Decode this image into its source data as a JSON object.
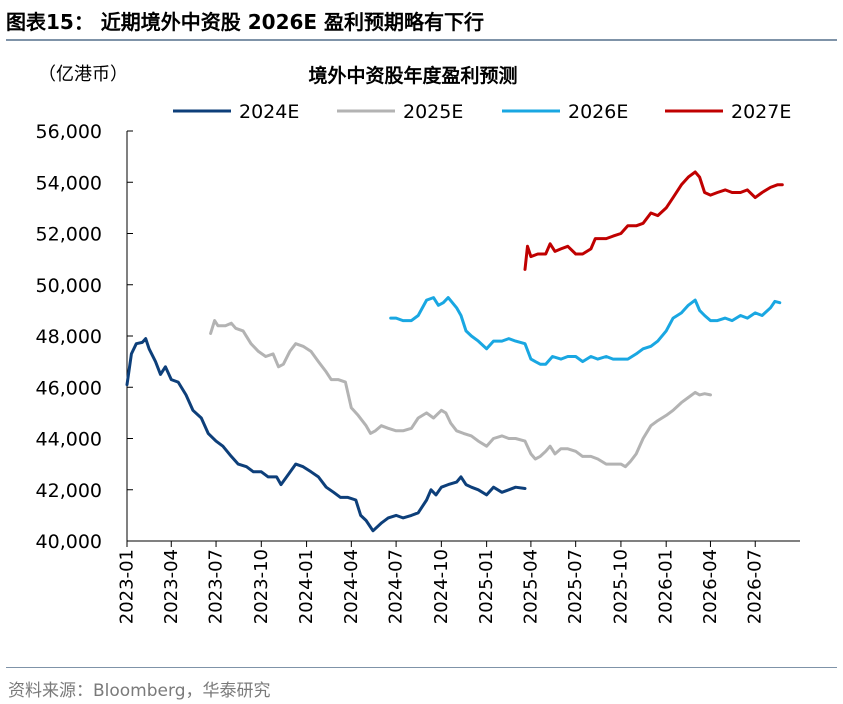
{
  "figure": {
    "title": "图表15：  近期境外中资股 2026E 盈利预期略有下行",
    "source": "资料来源：Bloomberg，华泰研究"
  },
  "chart_data": {
    "type": "line",
    "title": "境外中资股年度盈利预测",
    "unit_label": "（亿港币）",
    "ylim": [
      40000,
      56000
    ],
    "y_ticks": [
      40000,
      42000,
      44000,
      46000,
      48000,
      50000,
      52000,
      54000,
      56000
    ],
    "y_tick_labels": [
      "40,000",
      "42,000",
      "44,000",
      "46,000",
      "48,000",
      "50,000",
      "52,000",
      "54,000",
      "56,000"
    ],
    "x_range": [
      "2023-01",
      "2026-09"
    ],
    "x_ticks": [
      "2023-01",
      "2023-04",
      "2023-07",
      "2023-10",
      "2024-01",
      "2024-04",
      "2024-07",
      "2024-10",
      "2025-01",
      "2025-04",
      "2025-07",
      "2025-10",
      "2026-01",
      "2026-04",
      "2026-07"
    ],
    "grid": false,
    "legend_position": "top",
    "series": [
      {
        "name": "2024E",
        "color": "#0d3f7a",
        "points": [
          [
            "2023-01-01",
            46100
          ],
          [
            "2023-01-10",
            47300
          ],
          [
            "2023-01-20",
            47700
          ],
          [
            "2023-02-01",
            47750
          ],
          [
            "2023-02-08",
            47900
          ],
          [
            "2023-02-15",
            47500
          ],
          [
            "2023-02-28",
            47000
          ],
          [
            "2023-03-10",
            46500
          ],
          [
            "2023-03-20",
            46800
          ],
          [
            "2023-04-01",
            46300
          ],
          [
            "2023-04-15",
            46200
          ],
          [
            "2023-05-01",
            45700
          ],
          [
            "2023-05-15",
            45100
          ],
          [
            "2023-06-01",
            44800
          ],
          [
            "2023-06-15",
            44200
          ],
          [
            "2023-07-01",
            43900
          ],
          [
            "2023-07-15",
            43700
          ],
          [
            "2023-08-01",
            43300
          ],
          [
            "2023-08-15",
            43000
          ],
          [
            "2023-09-01",
            42900
          ],
          [
            "2023-09-15",
            42700
          ],
          [
            "2023-10-01",
            42700
          ],
          [
            "2023-10-15",
            42500
          ],
          [
            "2023-11-01",
            42500
          ],
          [
            "2023-11-10",
            42200
          ],
          [
            "2023-11-25",
            42600
          ],
          [
            "2023-12-10",
            43000
          ],
          [
            "2023-12-25",
            42900
          ],
          [
            "2024-01-10",
            42700
          ],
          [
            "2024-01-25",
            42500
          ],
          [
            "2024-02-10",
            42100
          ],
          [
            "2024-02-25",
            41900
          ],
          [
            "2024-03-10",
            41700
          ],
          [
            "2024-03-25",
            41700
          ],
          [
            "2024-04-10",
            41600
          ],
          [
            "2024-04-20",
            41000
          ],
          [
            "2024-05-01",
            40800
          ],
          [
            "2024-05-15",
            40400
          ],
          [
            "2024-06-01",
            40700
          ],
          [
            "2024-06-15",
            40900
          ],
          [
            "2024-07-01",
            41000
          ],
          [
            "2024-07-15",
            40900
          ],
          [
            "2024-08-01",
            41000
          ],
          [
            "2024-08-15",
            41100
          ],
          [
            "2024-09-01",
            41600
          ],
          [
            "2024-09-10",
            42000
          ],
          [
            "2024-09-20",
            41800
          ],
          [
            "2024-10-01",
            42100
          ],
          [
            "2024-10-15",
            42200
          ],
          [
            "2024-11-01",
            42300
          ],
          [
            "2024-11-10",
            42500
          ],
          [
            "2024-11-20",
            42200
          ],
          [
            "2024-12-01",
            42100
          ],
          [
            "2024-12-15",
            42000
          ],
          [
            "2025-01-01",
            41800
          ],
          [
            "2025-01-15",
            42100
          ],
          [
            "2025-02-01",
            41900
          ],
          [
            "2025-02-15",
            42000
          ],
          [
            "2025-03-01",
            42100
          ],
          [
            "2025-03-20",
            42050
          ]
        ]
      },
      {
        "name": "2025E",
        "color": "#b3b3b3",
        "points": [
          [
            "2023-06-20",
            48100
          ],
          [
            "2023-06-28",
            48600
          ],
          [
            "2023-07-05",
            48400
          ],
          [
            "2023-07-20",
            48400
          ],
          [
            "2023-08-01",
            48500
          ],
          [
            "2023-08-10",
            48300
          ],
          [
            "2023-08-25",
            48200
          ],
          [
            "2023-09-10",
            47700
          ],
          [
            "2023-09-25",
            47400
          ],
          [
            "2023-10-10",
            47200
          ],
          [
            "2023-10-25",
            47300
          ],
          [
            "2023-11-05",
            46800
          ],
          [
            "2023-11-15",
            46900
          ],
          [
            "2023-11-28",
            47400
          ],
          [
            "2023-12-10",
            47700
          ],
          [
            "2023-12-25",
            47600
          ],
          [
            "2024-01-10",
            47400
          ],
          [
            "2024-01-25",
            47000
          ],
          [
            "2024-02-10",
            46600
          ],
          [
            "2024-02-20",
            46300
          ],
          [
            "2024-03-05",
            46300
          ],
          [
            "2024-03-20",
            46200
          ],
          [
            "2024-04-01",
            45200
          ],
          [
            "2024-04-15",
            44900
          ],
          [
            "2024-05-01",
            44500
          ],
          [
            "2024-05-10",
            44200
          ],
          [
            "2024-05-20",
            44300
          ],
          [
            "2024-06-01",
            44500
          ],
          [
            "2024-06-15",
            44400
          ],
          [
            "2024-07-01",
            44300
          ],
          [
            "2024-07-15",
            44300
          ],
          [
            "2024-08-01",
            44400
          ],
          [
            "2024-08-15",
            44800
          ],
          [
            "2024-09-01",
            45000
          ],
          [
            "2024-09-15",
            44800
          ],
          [
            "2024-10-01",
            45100
          ],
          [
            "2024-10-10",
            45000
          ],
          [
            "2024-10-20",
            44600
          ],
          [
            "2024-11-01",
            44300
          ],
          [
            "2024-11-15",
            44200
          ],
          [
            "2024-12-01",
            44100
          ],
          [
            "2024-12-15",
            43900
          ],
          [
            "2025-01-01",
            43700
          ],
          [
            "2025-01-15",
            44000
          ],
          [
            "2025-02-01",
            44100
          ],
          [
            "2025-02-15",
            44000
          ],
          [
            "2025-03-01",
            44000
          ],
          [
            "2025-03-20",
            43900
          ],
          [
            "2025-04-01",
            43400
          ],
          [
            "2025-04-10",
            43200
          ],
          [
            "2025-04-20",
            43300
          ],
          [
            "2025-05-01",
            43500
          ],
          [
            "2025-05-10",
            43700
          ],
          [
            "2025-05-20",
            43400
          ],
          [
            "2025-06-01",
            43600
          ],
          [
            "2025-06-15",
            43600
          ],
          [
            "2025-07-01",
            43500
          ],
          [
            "2025-07-15",
            43300
          ],
          [
            "2025-08-01",
            43300
          ],
          [
            "2025-08-15",
            43200
          ],
          [
            "2025-09-01",
            43000
          ],
          [
            "2025-09-15",
            43000
          ],
          [
            "2025-10-01",
            43000
          ],
          [
            "2025-10-10",
            42900
          ],
          [
            "2025-10-20",
            43100
          ],
          [
            "2025-11-01",
            43400
          ],
          [
            "2025-11-15",
            44000
          ],
          [
            "2025-12-01",
            44500
          ],
          [
            "2025-12-15",
            44700
          ],
          [
            "2026-01-01",
            44900
          ],
          [
            "2026-01-15",
            45100
          ],
          [
            "2026-02-01",
            45400
          ],
          [
            "2026-02-15",
            45600
          ],
          [
            "2026-03-01",
            45800
          ],
          [
            "2026-03-10",
            45700
          ],
          [
            "2026-03-20",
            45750
          ],
          [
            "2026-04-01",
            45700
          ]
        ]
      },
      {
        "name": "2026E",
        "color": "#19a7e2",
        "points": [
          [
            "2024-06-20",
            48700
          ],
          [
            "2024-07-01",
            48700
          ],
          [
            "2024-07-15",
            48600
          ],
          [
            "2024-08-01",
            48600
          ],
          [
            "2024-08-15",
            48800
          ],
          [
            "2024-09-01",
            49400
          ],
          [
            "2024-09-15",
            49500
          ],
          [
            "2024-09-25",
            49200
          ],
          [
            "2024-10-05",
            49300
          ],
          [
            "2024-10-15",
            49500
          ],
          [
            "2024-11-01",
            49100
          ],
          [
            "2024-11-10",
            48800
          ],
          [
            "2024-11-20",
            48200
          ],
          [
            "2024-12-01",
            48000
          ],
          [
            "2024-12-15",
            47800
          ],
          [
            "2025-01-01",
            47500
          ],
          [
            "2025-01-15",
            47800
          ],
          [
            "2025-02-01",
            47800
          ],
          [
            "2025-02-15",
            47900
          ],
          [
            "2025-03-01",
            47800
          ],
          [
            "2025-03-20",
            47700
          ],
          [
            "2025-04-01",
            47100
          ],
          [
            "2025-04-10",
            47000
          ],
          [
            "2025-04-20",
            46900
          ],
          [
            "2025-05-01",
            46900
          ],
          [
            "2025-05-15",
            47200
          ],
          [
            "2025-06-01",
            47100
          ],
          [
            "2025-06-15",
            47200
          ],
          [
            "2025-07-01",
            47200
          ],
          [
            "2025-07-15",
            47000
          ],
          [
            "2025-08-01",
            47200
          ],
          [
            "2025-08-15",
            47100
          ],
          [
            "2025-09-01",
            47200
          ],
          [
            "2025-09-15",
            47100
          ],
          [
            "2025-10-01",
            47100
          ],
          [
            "2025-10-15",
            47100
          ],
          [
            "2025-11-01",
            47300
          ],
          [
            "2025-11-15",
            47500
          ],
          [
            "2025-12-01",
            47600
          ],
          [
            "2025-12-15",
            47800
          ],
          [
            "2026-01-01",
            48200
          ],
          [
            "2026-01-15",
            48700
          ],
          [
            "2026-02-01",
            48900
          ],
          [
            "2026-02-15",
            49200
          ],
          [
            "2026-03-01",
            49400
          ],
          [
            "2026-03-10",
            49000
          ],
          [
            "2026-03-20",
            48800
          ],
          [
            "2026-04-01",
            48600
          ],
          [
            "2026-04-15",
            48600
          ],
          [
            "2026-05-01",
            48700
          ],
          [
            "2026-05-15",
            48600
          ],
          [
            "2026-06-01",
            48800
          ],
          [
            "2026-06-15",
            48700
          ],
          [
            "2026-07-01",
            48900
          ],
          [
            "2026-07-15",
            48800
          ],
          [
            "2026-08-01",
            49100
          ],
          [
            "2026-08-10",
            49350
          ],
          [
            "2026-08-20",
            49300
          ]
        ]
      },
      {
        "name": "2027E",
        "color": "#c00000",
        "points": [
          [
            "2025-03-20",
            50600
          ],
          [
            "2025-03-25",
            51500
          ],
          [
            "2025-04-01",
            51100
          ],
          [
            "2025-04-15",
            51200
          ],
          [
            "2025-05-01",
            51200
          ],
          [
            "2025-05-10",
            51600
          ],
          [
            "2025-05-20",
            51300
          ],
          [
            "2025-06-01",
            51400
          ],
          [
            "2025-06-15",
            51500
          ],
          [
            "2025-07-01",
            51200
          ],
          [
            "2025-07-15",
            51200
          ],
          [
            "2025-08-01",
            51400
          ],
          [
            "2025-08-10",
            51800
          ],
          [
            "2025-08-20",
            51800
          ],
          [
            "2025-09-01",
            51800
          ],
          [
            "2025-09-15",
            51900
          ],
          [
            "2025-10-01",
            52000
          ],
          [
            "2025-10-15",
            52300
          ],
          [
            "2025-11-01",
            52300
          ],
          [
            "2025-11-15",
            52400
          ],
          [
            "2025-12-01",
            52800
          ],
          [
            "2025-12-15",
            52700
          ],
          [
            "2026-01-01",
            53000
          ],
          [
            "2026-01-15",
            53400
          ],
          [
            "2026-02-01",
            53900
          ],
          [
            "2026-02-15",
            54200
          ],
          [
            "2026-03-01",
            54400
          ],
          [
            "2026-03-10",
            54200
          ],
          [
            "2026-03-20",
            53600
          ],
          [
            "2026-04-01",
            53500
          ],
          [
            "2026-04-15",
            53600
          ],
          [
            "2026-05-01",
            53700
          ],
          [
            "2026-05-15",
            53600
          ],
          [
            "2026-06-01",
            53600
          ],
          [
            "2026-06-15",
            53700
          ],
          [
            "2026-07-01",
            53400
          ],
          [
            "2026-07-15",
            53600
          ],
          [
            "2026-08-01",
            53800
          ],
          [
            "2026-08-15",
            53900
          ],
          [
            "2026-08-25",
            53900
          ]
        ]
      }
    ]
  }
}
